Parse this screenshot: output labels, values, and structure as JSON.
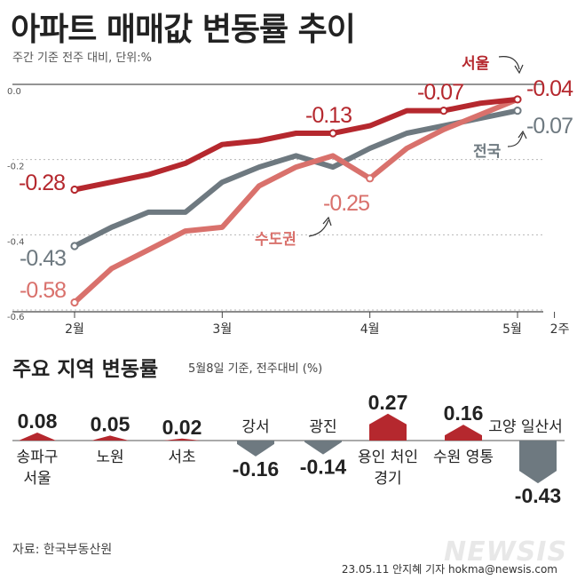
{
  "title": "아파트 매매값 변동률 추이",
  "subtitle": "주간 기준 전주 대비, 단위:%",
  "section2_title": "주요 지역 변동률",
  "section2_note": "5월8일 기준, 전주대비 (%)",
  "source": "자료: 한국부동산원",
  "credit": "23.05.11 안지혜 기자 hokma@newsis.com",
  "watermark": "NEWSIS",
  "colors": {
    "seoul": "#b5282e",
    "nationwide": "#6e7980",
    "capital": "#d9716c",
    "up_bar": "#b5282e",
    "down_bar": "#6e7980"
  },
  "chart_data": [
    {
      "type": "line",
      "yticks": [
        "0.0",
        "-0.2",
        "-0.4",
        "-0.6"
      ],
      "ylim": [
        -0.6,
        0.0
      ],
      "xticks": [
        "2월",
        "3월",
        "4월",
        "5월",
        "2주"
      ],
      "xtick_positions": [
        0,
        4,
        8,
        12,
        13
      ],
      "series": [
        {
          "name": "서울",
          "key": "seoul",
          "values": [
            -0.28,
            -0.26,
            -0.24,
            -0.21,
            -0.16,
            -0.15,
            -0.13,
            -0.13,
            -0.11,
            -0.07,
            -0.07,
            -0.05,
            -0.04
          ],
          "labels": [
            {
              "i": 0,
              "text": "-0.28"
            },
            {
              "i": 7,
              "text": "-0.13"
            },
            {
              "i": 10,
              "text": "-0.07"
            },
            {
              "i": 12,
              "text": "-0.04"
            }
          ],
          "name_label": "서울"
        },
        {
          "name": "전국",
          "key": "nationwide",
          "values": [
            -0.43,
            -0.38,
            -0.34,
            -0.34,
            -0.26,
            -0.22,
            -0.19,
            -0.22,
            -0.17,
            -0.13,
            -0.11,
            -0.09,
            -0.07
          ],
          "labels": [
            {
              "i": 0,
              "text": "-0.43"
            },
            {
              "i": 12,
              "text": "-0.07"
            }
          ],
          "name_label": "전국"
        },
        {
          "name": "수도권",
          "key": "capital",
          "values": [
            -0.58,
            -0.49,
            -0.44,
            -0.39,
            -0.38,
            -0.27,
            -0.22,
            -0.19,
            -0.25,
            -0.17,
            -0.12,
            -0.08,
            -0.04
          ],
          "labels": [
            {
              "i": 0,
              "text": "-0.58"
            },
            {
              "i": 8,
              "text": "-0.25"
            }
          ],
          "name_label": "수도권"
        }
      ]
    },
    {
      "type": "bar",
      "categories": [
        "송파구 서울",
        "노원",
        "서초",
        "강서",
        "광진",
        "용인 처인 경기",
        "수원 영통",
        "고양 일산서"
      ],
      "category_lines": [
        [
          "송파구",
          "서울"
        ],
        [
          "노원"
        ],
        [
          "서초"
        ],
        [
          "강서"
        ],
        [
          "광진"
        ],
        [
          "용인 처인",
          "경기"
        ],
        [
          "수원 영통"
        ],
        [
          "고양 일산서"
        ]
      ],
      "values": [
        0.08,
        0.05,
        0.02,
        -0.16,
        -0.14,
        0.27,
        0.16,
        -0.43
      ],
      "value_labels": [
        "0.08",
        "0.05",
        "0.02",
        "-0.16",
        "-0.14",
        "0.27",
        "0.16",
        "-0.43"
      ]
    }
  ]
}
